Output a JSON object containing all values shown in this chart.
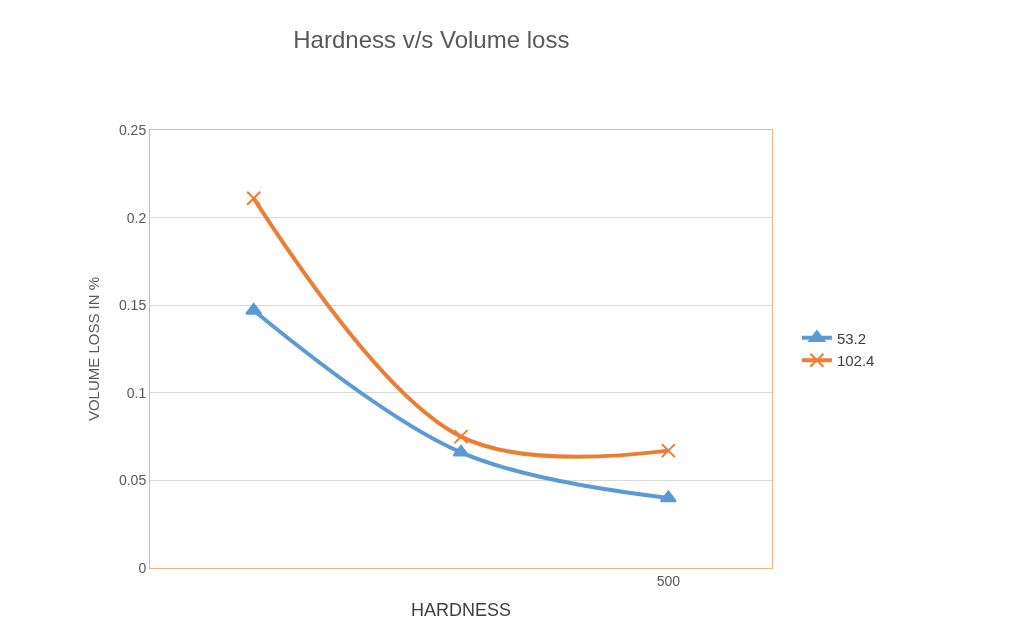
{
  "chart_data": {
    "type": "line",
    "title": "Hardness v/s Volume loss",
    "xlabel": "HARDNESS",
    "ylabel": "VOLUME LOSS IN %",
    "categories": [
      null,
      null,
      "500"
    ],
    "series": [
      {
        "name": "53.2",
        "color": "#5b9bd5",
        "marker": "triangle",
        "values": [
          0.147,
          0.066,
          0.04
        ]
      },
      {
        "name": "102.4",
        "color": "#ed7d31",
        "marker": "cross",
        "values": [
          0.211,
          0.075,
          0.067
        ]
      }
    ],
    "ylim": [
      0,
      0.25
    ],
    "yticks": [
      0,
      0.05,
      0.1,
      0.15,
      0.2,
      0.25
    ],
    "grid": "y",
    "legend": "right",
    "line_style": "solid"
  }
}
